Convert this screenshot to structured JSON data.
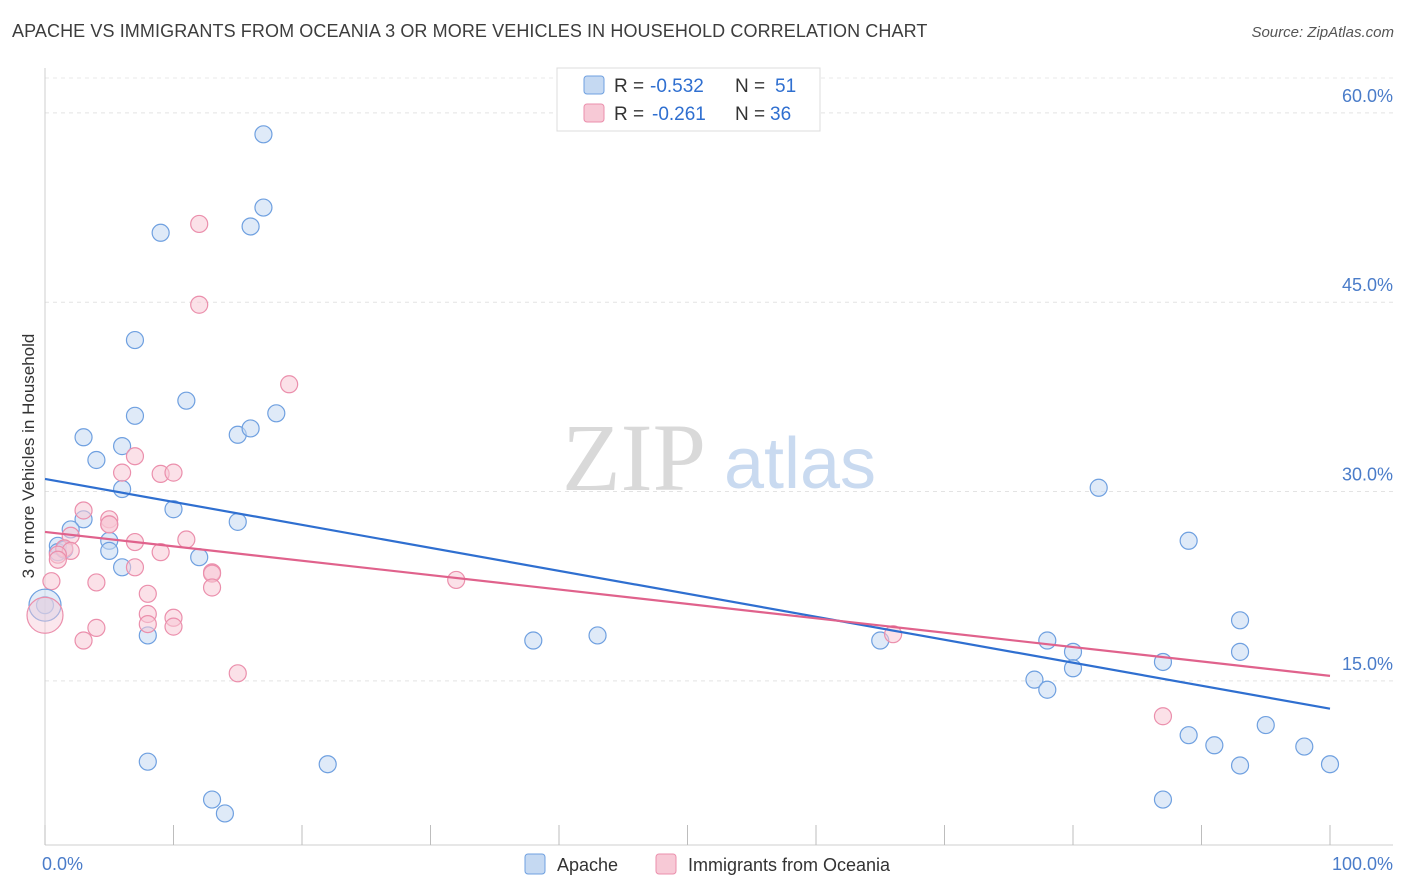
{
  "title": "APACHE VS IMMIGRANTS FROM OCEANIA 3 OR MORE VEHICLES IN HOUSEHOLD CORRELATION CHART",
  "source": "Source: ZipAtlas.com",
  "watermark": {
    "zip": "ZIP",
    "atlas": "atlas"
  },
  "chart_data": {
    "type": "scatter",
    "title": "APACHE VS IMMIGRANTS FROM OCEANIA 3 OR MORE VEHICLES IN HOUSEHOLD CORRELATION CHART",
    "xlabel": "",
    "ylabel": "3 or more Vehicles in Household",
    "xlim": [
      0,
      100
    ],
    "ylim": [
      2,
      63
    ],
    "y_ticks": [
      15,
      30,
      45,
      60
    ],
    "y_tick_labels": [
      "15.0%",
      "30.0%",
      "45.0%",
      "60.0%"
    ],
    "x_tick_labels": [
      "0.0%",
      "100.0%"
    ],
    "grid": true,
    "legend_position": "top-center",
    "series": [
      {
        "name": "Apache",
        "color": "#6fa0e0",
        "fill": "#c5d9f2",
        "line_color": "#2f6fd0",
        "R": "-0.532",
        "N": "51",
        "trend": {
          "x0": 0,
          "y0": 31.0,
          "x1": 100,
          "y1": 12.8
        },
        "points": [
          [
            17,
            58.3
          ],
          [
            17,
            52.5
          ],
          [
            9,
            50.5
          ],
          [
            16,
            51.0
          ],
          [
            7,
            42.0
          ],
          [
            11,
            37.2
          ],
          [
            7,
            36.0
          ],
          [
            18,
            36.2
          ],
          [
            15,
            34.5
          ],
          [
            16,
            35.0
          ],
          [
            3,
            34.3
          ],
          [
            6,
            33.6
          ],
          [
            4,
            32.5
          ],
          [
            6,
            30.2
          ],
          [
            10,
            28.6
          ],
          [
            3,
            27.8
          ],
          [
            2,
            27.0
          ],
          [
            15,
            27.6
          ],
          [
            5,
            26.1
          ],
          [
            1,
            25.7
          ],
          [
            1,
            25.2
          ],
          [
            5,
            25.3
          ],
          [
            12,
            24.8
          ],
          [
            6,
            24.0
          ],
          [
            0,
            21.0
          ],
          [
            8,
            18.6
          ],
          [
            38,
            18.2
          ],
          [
            43,
            18.6
          ],
          [
            65,
            18.2
          ],
          [
            82,
            30.3
          ],
          [
            89,
            26.1
          ],
          [
            78,
            18.2
          ],
          [
            80,
            17.3
          ],
          [
            80,
            16.0
          ],
          [
            77,
            15.1
          ],
          [
            78,
            14.3
          ],
          [
            87,
            16.5
          ],
          [
            93,
            19.8
          ],
          [
            93,
            17.3
          ],
          [
            95,
            11.5
          ],
          [
            89,
            10.7
          ],
          [
            91,
            9.9
          ],
          [
            93,
            8.3
          ],
          [
            98,
            9.8
          ],
          [
            100,
            8.4
          ],
          [
            8,
            8.6
          ],
          [
            22,
            8.4
          ],
          [
            13,
            5.6
          ],
          [
            14,
            4.5
          ],
          [
            87,
            5.6
          ],
          [
            1.5,
            25.4
          ]
        ]
      },
      {
        "name": "Immigrants from Oceania",
        "color": "#eb8fac",
        "fill": "#f7c9d6",
        "line_color": "#e0628c",
        "R": "-0.261",
        "N": "36",
        "trend": {
          "x0": 0,
          "y0": 26.8,
          "x1": 100,
          "y1": 15.4
        },
        "points": [
          [
            12,
            51.2
          ],
          [
            12,
            44.8
          ],
          [
            19,
            38.5
          ],
          [
            7,
            32.8
          ],
          [
            6,
            31.5
          ],
          [
            9,
            31.4
          ],
          [
            10,
            31.5
          ],
          [
            3,
            28.5
          ],
          [
            5,
            27.8
          ],
          [
            5,
            27.4
          ],
          [
            5,
            27.4
          ],
          [
            2,
            26.5
          ],
          [
            7,
            26.0
          ],
          [
            11,
            26.2
          ],
          [
            1.5,
            25.5
          ],
          [
            2,
            25.3
          ],
          [
            1,
            25.0
          ],
          [
            1,
            24.6
          ],
          [
            7,
            24.0
          ],
          [
            9,
            25.2
          ],
          [
            13,
            23.6
          ],
          [
            13,
            23.5
          ],
          [
            13,
            22.4
          ],
          [
            0.5,
            22.9
          ],
          [
            4,
            22.8
          ],
          [
            8,
            21.9
          ],
          [
            32,
            23.0
          ],
          [
            8,
            20.3
          ],
          [
            10,
            20.0
          ],
          [
            8,
            19.5
          ],
          [
            10,
            19.3
          ],
          [
            4,
            19.2
          ],
          [
            3,
            18.2
          ],
          [
            15,
            15.6
          ],
          [
            66,
            18.7
          ],
          [
            87,
            12.2
          ]
        ]
      }
    ]
  }
}
